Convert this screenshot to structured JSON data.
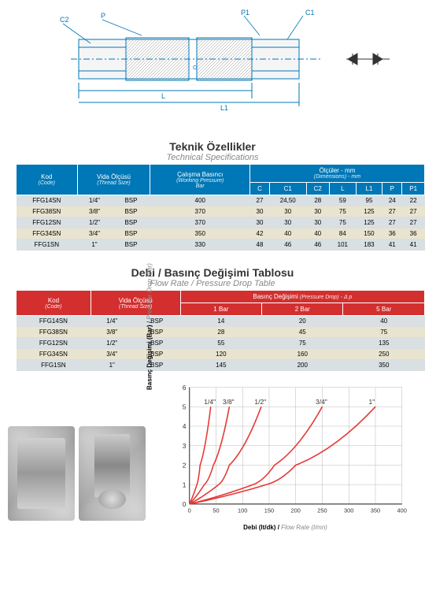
{
  "diagram": {
    "labels": {
      "P": "P",
      "P1": "P1",
      "C1": "C1",
      "C2": "C2",
      "L": "L",
      "L1": "L1",
      "C": "C"
    },
    "line_color": "#0077b6",
    "hatch_color": "#777"
  },
  "specs": {
    "title_tr": "Teknik Özellikler",
    "title_en": "Technical Specifications",
    "headers": {
      "code": {
        "tr": "Kod",
        "en": "(Code)"
      },
      "thread": {
        "tr": "Vida Ölçüsü",
        "en": "(Thread Size)"
      },
      "pressure": {
        "tr": "Çalışma Basıncı",
        "en": "(Working Pressure)",
        "unit": "Bar"
      },
      "dims": {
        "tr": "Ölçüler - mm",
        "en": "(Dimensions) - mm"
      },
      "C": "C",
      "C1": "C1",
      "C2": "C2",
      "L": "L",
      "L1": "L1",
      "P": "P",
      "P1": "P1"
    },
    "rows": [
      {
        "code": "FFG14SN",
        "thread": "1/4\"",
        "bsp": "BSP",
        "pressure": 400,
        "C": 27,
        "C1": "24,50",
        "C2": 28,
        "L": 59,
        "L1": 95,
        "P": 24,
        "P1": 22
      },
      {
        "code": "FFG38SN",
        "thread": "3/8\"",
        "bsp": "BSP",
        "pressure": 370,
        "C": 30,
        "C1": 30,
        "C2": 30,
        "L": 75,
        "L1": 125,
        "P": 27,
        "P1": 27
      },
      {
        "code": "FFG12SN",
        "thread": "1/2\"",
        "bsp": "BSP",
        "pressure": 370,
        "C": 30,
        "C1": 30,
        "C2": 30,
        "L": 75,
        "L1": 125,
        "P": 27,
        "P1": 27
      },
      {
        "code": "FFG34SN",
        "thread": "3/4\"",
        "bsp": "BSP",
        "pressure": 350,
        "C": 42,
        "C1": 40,
        "C2": 40,
        "L": 84,
        "L1": 150,
        "P": 36,
        "P1": 36
      },
      {
        "code": "FFG1SN",
        "thread": "1\"",
        "bsp": "BSP",
        "pressure": 330,
        "C": 48,
        "C1": 46,
        "C2": 46,
        "L": 101,
        "L1": 183,
        "P": 41,
        "P1": 41
      }
    ]
  },
  "flow": {
    "title_tr": "Debi / Basınç Değişimi Tablosu",
    "title_en": "Flow Rate / Pressure Drop Table",
    "headers": {
      "code": {
        "tr": "Kod",
        "en": "(Code)"
      },
      "thread": {
        "tr": "Vida Ölçüsü",
        "en": "(Thread Size)"
      },
      "drop": {
        "tr": "Basınç Değişimi",
        "en": "(Pressure Drop) - Δ p"
      },
      "b1": "1 Bar",
      "b2": "2 Bar",
      "b5": "5 Bar"
    },
    "rows": [
      {
        "code": "FFG14SN",
        "thread": "1/4\"",
        "bsp": "BSP",
        "b1": 14,
        "b2": 20,
        "b5": 40
      },
      {
        "code": "FFG38SN",
        "thread": "3/8\"",
        "bsp": "BSP",
        "b1": 28,
        "b2": 45,
        "b5": 75
      },
      {
        "code": "FFG12SN",
        "thread": "1/2\"",
        "bsp": "BSP",
        "b1": 55,
        "b2": 75,
        "b5": 135
      },
      {
        "code": "FFG34SN",
        "thread": "3/4\"",
        "bsp": "BSP",
        "b1": 120,
        "b2": 160,
        "b5": 250
      },
      {
        "code": "FFG1SN",
        "thread": "1\"",
        "bsp": "BSP",
        "b1": 145,
        "b2": 200,
        "b5": 350
      }
    ]
  },
  "chart": {
    "ylabel_tr": "Basınç Değişimi (Bar)",
    "ylabel_en": "Pressure Drop (Bar)",
    "xlabel_tr": "Debi (lt/dk) /",
    "xlabel_en": "Flow Rate (l/mn)",
    "xlim": [
      0,
      400
    ],
    "ylim": [
      0,
      6
    ],
    "xtick_step": 50,
    "ytick_step": 1,
    "grid_color": "#bbb",
    "line_color": "#e53935",
    "curves": [
      {
        "label": "1/4\"",
        "points": [
          [
            0,
            0
          ],
          [
            14,
            1
          ],
          [
            20,
            2
          ],
          [
            40,
            5
          ]
        ]
      },
      {
        "label": "3/8\"",
        "points": [
          [
            0,
            0
          ],
          [
            28,
            1
          ],
          [
            45,
            2
          ],
          [
            75,
            5
          ]
        ]
      },
      {
        "label": "1/2\"",
        "points": [
          [
            0,
            0
          ],
          [
            55,
            1
          ],
          [
            75,
            2
          ],
          [
            135,
            5
          ]
        ]
      },
      {
        "label": "3/4\"",
        "points": [
          [
            0,
            0
          ],
          [
            120,
            1
          ],
          [
            160,
            2
          ],
          [
            250,
            5
          ]
        ]
      },
      {
        "label": "1\"",
        "points": [
          [
            0,
            0
          ],
          [
            145,
            1
          ],
          [
            200,
            2
          ],
          [
            350,
            5
          ]
        ]
      }
    ],
    "label_fontsize": 8
  }
}
